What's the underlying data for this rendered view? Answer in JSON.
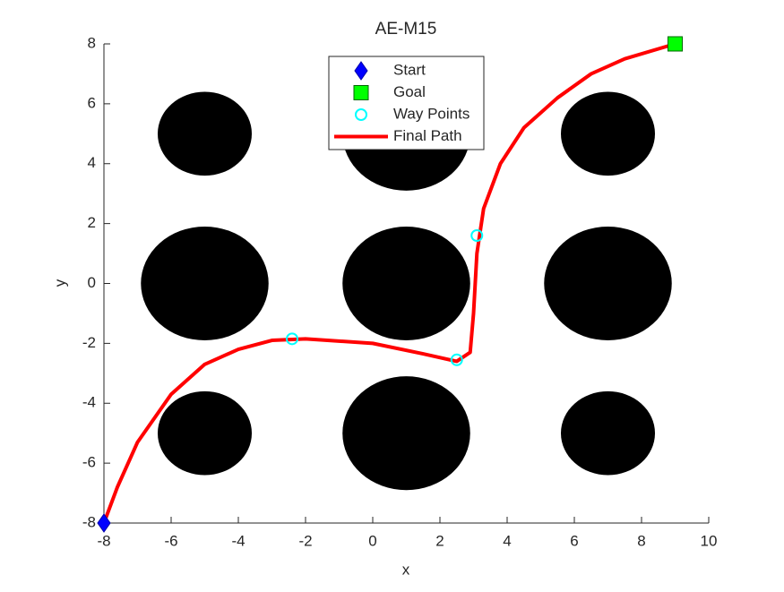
{
  "chart_data": {
    "type": "line",
    "title": "AE-M15",
    "x_label": "x",
    "y_label": "y",
    "xlim": [
      -8,
      10
    ],
    "ylim": [
      -8,
      8
    ],
    "xticks": [
      -8,
      -6,
      -4,
      -2,
      0,
      2,
      4,
      6,
      8,
      10
    ],
    "yticks": [
      -8,
      -6,
      -4,
      -2,
      0,
      2,
      4,
      6,
      8
    ],
    "legend": "north",
    "obstacles": {
      "color": "#000000",
      "x": [
        -5,
        1,
        7,
        -5,
        1,
        7,
        -5,
        1,
        7
      ],
      "y": [
        5,
        5,
        5,
        0,
        0,
        0,
        -5,
        -5,
        -5
      ],
      "r": [
        1.4,
        1.9,
        1.4,
        1.9,
        1.9,
        1.9,
        1.4,
        1.9,
        1.4
      ]
    },
    "series": [
      {
        "name": "Start",
        "color": "#0000ff",
        "marker": "diamond",
        "x": [
          -8
        ],
        "values": [
          -8
        ]
      },
      {
        "name": "Goal",
        "color": "#00ff00",
        "marker": "square",
        "x": [
          9
        ],
        "values": [
          8
        ]
      },
      {
        "name": "Way Points",
        "color": "#00ffff",
        "marker": "circle",
        "x": [
          -2.4,
          2.5,
          3.1
        ],
        "values": [
          -1.85,
          -2.55,
          1.6
        ]
      },
      {
        "name": "Final Path",
        "color": "#ff0000",
        "marker": "none",
        "x": [
          -8,
          -7.6,
          -7,
          -6,
          -5,
          -4,
          -3,
          -2,
          0,
          1.5,
          2.5,
          2.9,
          3.0,
          3.05,
          3.1,
          3.3,
          3.8,
          4.5,
          5.5,
          6.5,
          7.5,
          9
        ],
        "values": [
          -8,
          -6.8,
          -5.3,
          -3.7,
          -2.7,
          -2.2,
          -1.9,
          -1.85,
          -2.0,
          -2.35,
          -2.6,
          -2.3,
          -1,
          0,
          1.0,
          2.5,
          4.0,
          5.2,
          6.2,
          7.0,
          7.5,
          8
        ]
      }
    ]
  }
}
